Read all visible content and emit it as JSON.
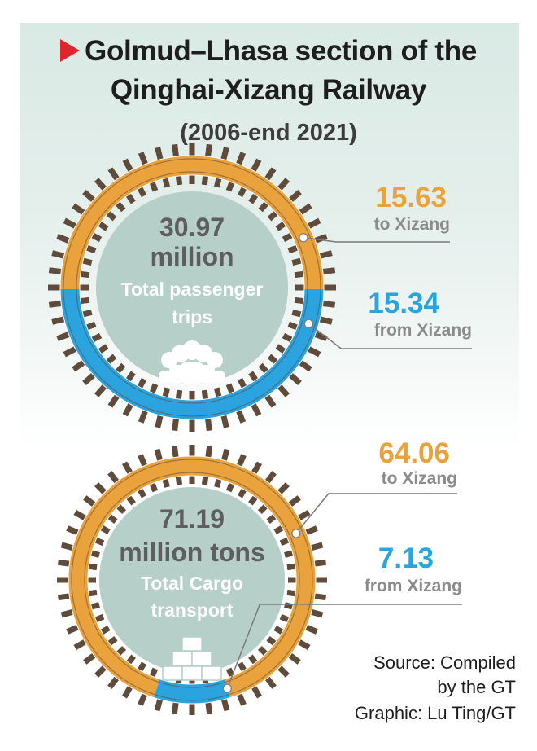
{
  "title_line1": "Golmud–Lhasa section of the",
  "title_line2": "Qinghai-Xizang Railway",
  "subtitle": "(2006-end 2021)",
  "colors": {
    "to": "#e9a23c",
    "from": "#2aa3df",
    "center": "#b6cfc9",
    "ties": "#5e4b3b",
    "leader": "#7a7a7a",
    "icon": "#ffffff",
    "total_text": "#5e5e5e"
  },
  "chart_data": [
    {
      "type": "pie",
      "title": "Total passenger trips",
      "total_value": "30.97",
      "total_unit": "million",
      "center_label_lines": [
        "Total passenger",
        "trips"
      ],
      "icon": "people-icon",
      "categories": [
        "to Xizang",
        "from Xizang"
      ],
      "values": [
        15.63,
        15.34
      ]
    },
    {
      "type": "pie",
      "title": "Total Cargo transport",
      "total_value": "71.19",
      "total_unit": "million tons",
      "center_label_lines": [
        "Total Cargo",
        "transport"
      ],
      "icon": "cargo-boxes-icon",
      "categories": [
        "to Xizang",
        "from Xizang"
      ],
      "values": [
        64.06,
        7.13
      ]
    }
  ],
  "source_lines": [
    "Source: Compiled",
    "by the GT",
    "Graphic: Lu Ting/GT"
  ]
}
